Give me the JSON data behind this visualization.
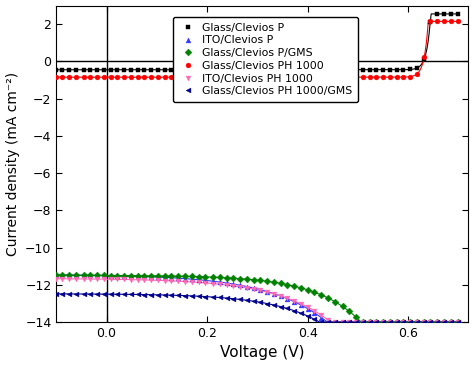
{
  "title": "",
  "xlabel": "Voltage (V)",
  "ylabel": "Current density (mA cm⁻²)",
  "xlim": [
    -0.1,
    0.72
  ],
  "ylim": [
    -14,
    3
  ],
  "yticks": [
    2,
    0,
    -2,
    -4,
    -6,
    -8,
    -10,
    -12,
    -14
  ],
  "xticks": [
    0.0,
    0.2,
    0.4,
    0.6
  ],
  "series": [
    {
      "label": "Glass/Clevios P",
      "color": "#000000",
      "marker": "s",
      "jsc": -0.45,
      "voc": 0.63,
      "rs": 80,
      "flat": true
    },
    {
      "label": "ITO/Clevios P",
      "color": "#3333FF",
      "marker": "^",
      "jsc": -11.5,
      "voc": 0.615,
      "rs": 4.5,
      "flat": false
    },
    {
      "label": "Glass/Clevios P/GMS",
      "color": "#008000",
      "marker": "D",
      "jsc": -11.5,
      "voc": 0.645,
      "rs": 3.5,
      "flat": false
    },
    {
      "label": "Glass/Clevios PH 1000",
      "color": "#FF0000",
      "marker": "o",
      "jsc": -0.85,
      "voc": 0.63,
      "rs": 80,
      "flat": true
    },
    {
      "label": "ITO/Clevios PH 1000",
      "color": "#FF69B4",
      "marker": "v",
      "jsc": -11.7,
      "voc": 0.622,
      "rs": 4.2,
      "flat": false
    },
    {
      "label": "Glass/Clevios PH 1000/GMS",
      "color": "#00008B",
      "marker": "<",
      "jsc": -12.5,
      "voc": 0.632,
      "rs": 3.8,
      "flat": false
    }
  ],
  "figsize": [
    4.74,
    3.66
  ],
  "dpi": 100
}
